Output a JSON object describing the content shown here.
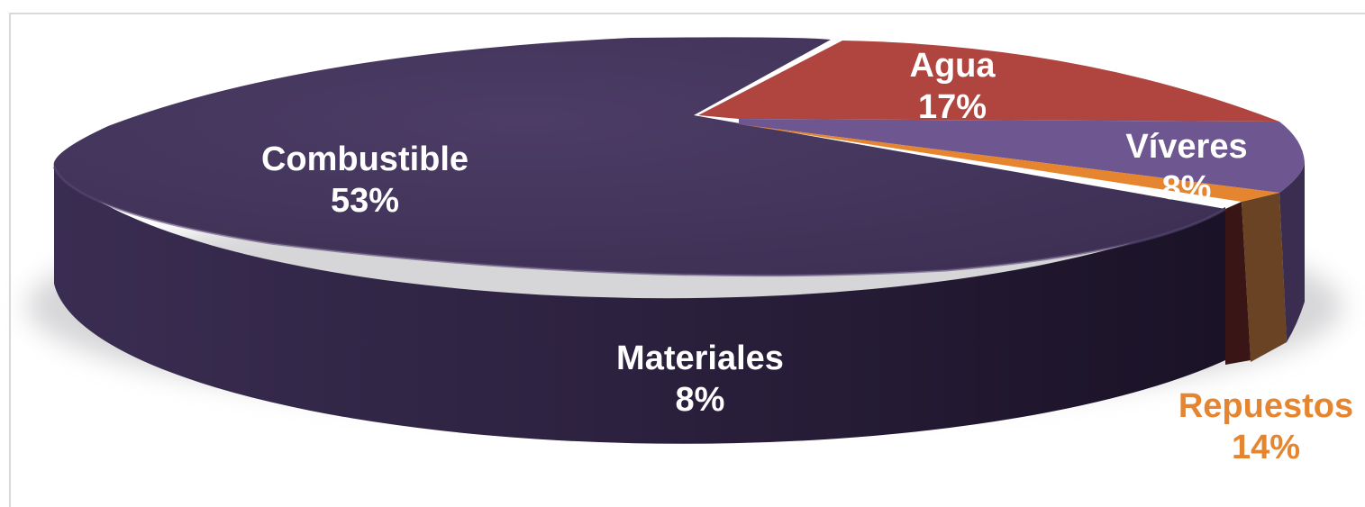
{
  "chart_data": {
    "type": "pie",
    "style": "3d-exploded",
    "slices": [
      {
        "label": "Agua",
        "value": 17,
        "value_label": "17%",
        "color": "#b0453f",
        "label_color": "#ffffff"
      },
      {
        "label": "Víveres",
        "value": 8,
        "value_label": "8%",
        "color": "#6e5790",
        "label_color": "#ffffff"
      },
      {
        "label": "Repuestos",
        "value": 14,
        "value_label": "14%",
        "color": "#e6852f",
        "label_color": "#e6852f"
      },
      {
        "label": "Materiales",
        "value": 8,
        "value_label": "8%",
        "color": "#3b2d55",
        "label_color": "#ffffff"
      },
      {
        "label": "Combustible",
        "value": 53,
        "value_label": "53%",
        "color": "#47385f",
        "label_color": "#ffffff"
      }
    ],
    "legend": "none",
    "title": ""
  }
}
